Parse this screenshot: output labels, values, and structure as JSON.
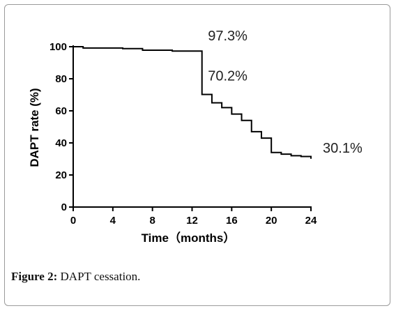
{
  "caption": {
    "label": "Figure 2:",
    "text": "DAPT cessation."
  },
  "chart_data": {
    "type": "line",
    "step": true,
    "xlabel": "Time（months）",
    "ylabel": "DAPT rate (%)",
    "xlim": [
      0,
      24
    ],
    "ylim": [
      0,
      100
    ],
    "x_ticks": [
      0,
      4,
      8,
      12,
      16,
      20,
      24
    ],
    "y_ticks": [
      0,
      20,
      40,
      60,
      80,
      100
    ],
    "grid": false,
    "series": [
      {
        "x": [
          0,
          1,
          5,
          7,
          10,
          13,
          14,
          15,
          16,
          17,
          18,
          19,
          20,
          21,
          22,
          23,
          24
        ],
        "y": [
          100,
          99.2,
          98.8,
          97.8,
          97.3,
          70.2,
          65,
          62,
          58,
          54,
          47,
          43,
          34,
          33,
          32,
          31.5,
          30.1
        ]
      }
    ],
    "annotations": [
      {
        "text": "97.3%",
        "x": 13.6,
        "y": 104
      },
      {
        "text": "70.2%",
        "x": 13.6,
        "y": 79
      },
      {
        "text": "30.1%",
        "x": 25.2,
        "y": 34
      }
    ]
  }
}
